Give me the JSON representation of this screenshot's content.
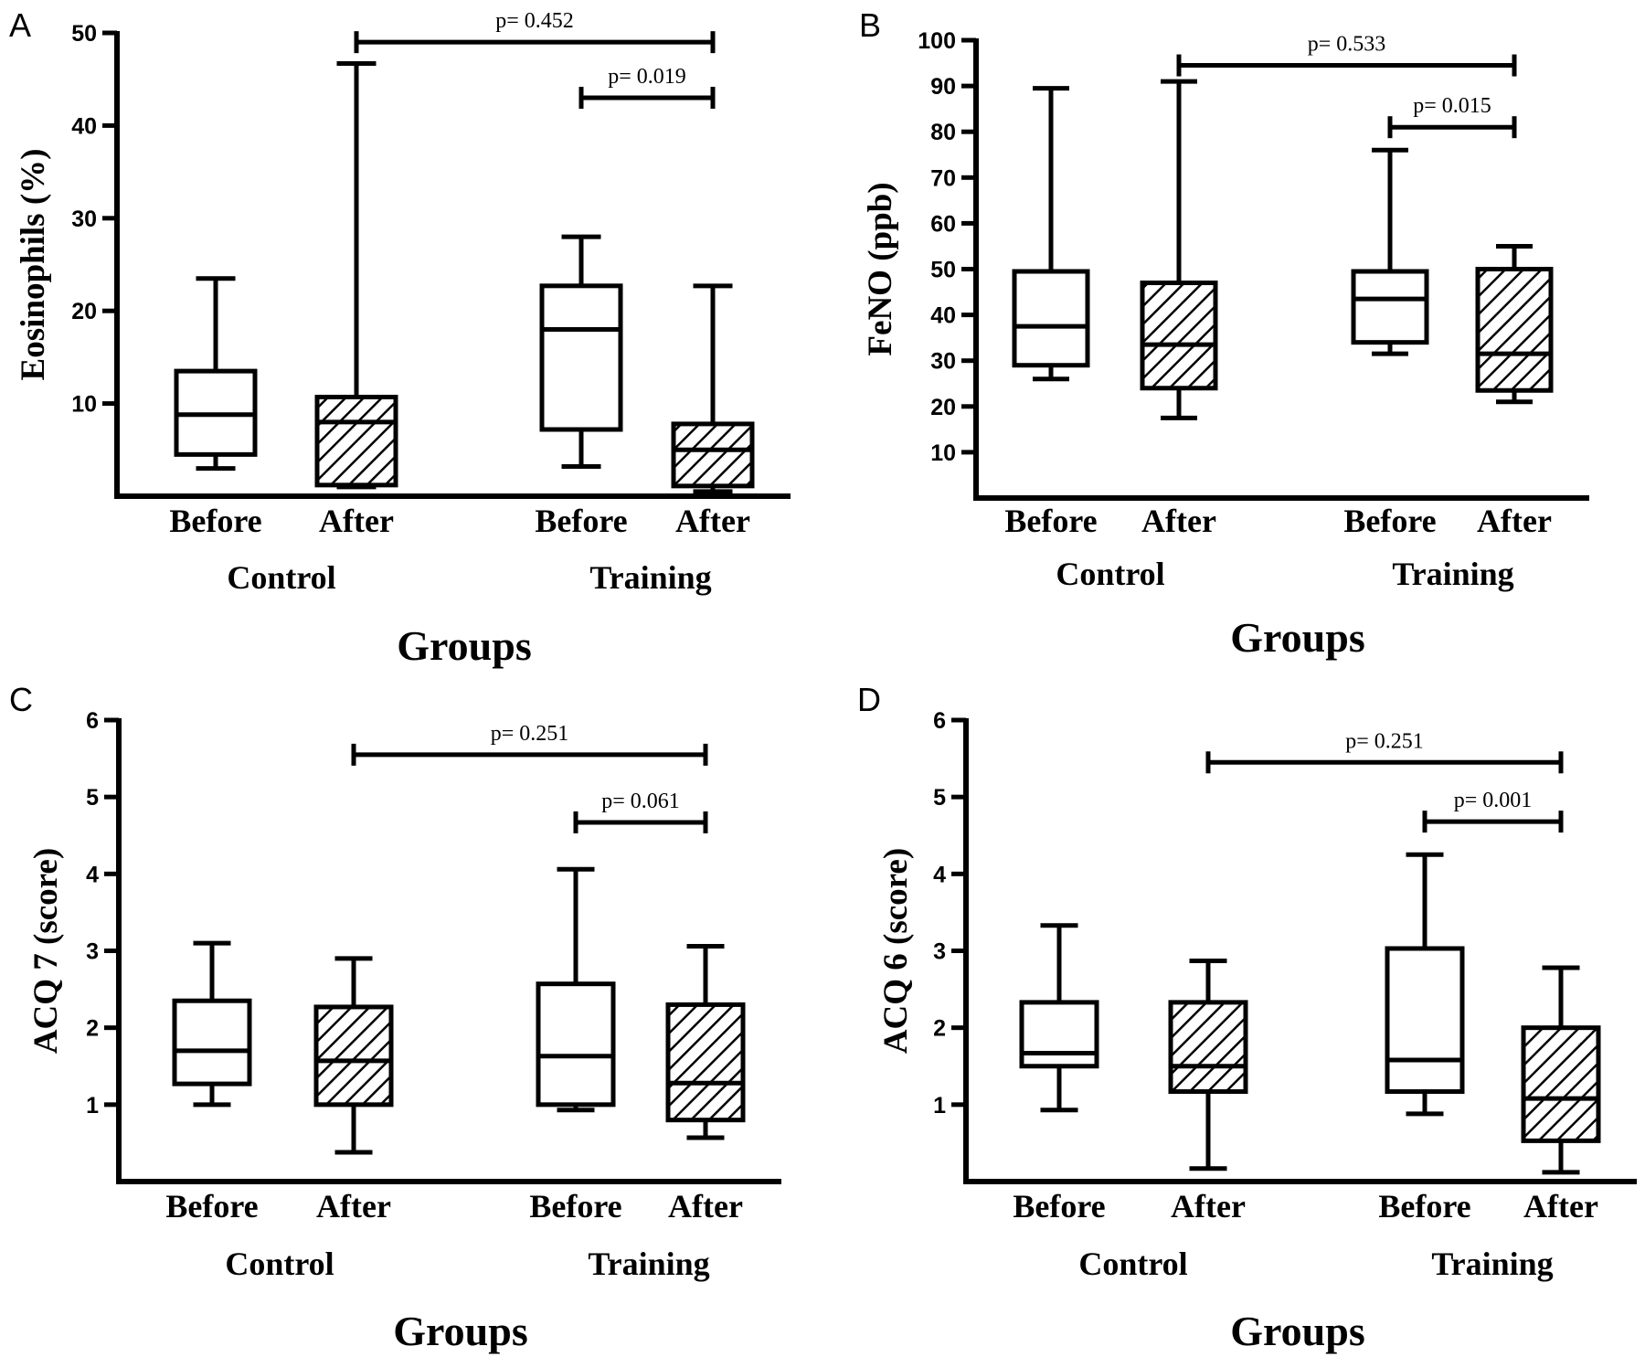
{
  "chart_data": [
    {
      "type": "box",
      "panel": "A",
      "ylabel": "Eosinophils (%)",
      "xlabel": "Groups",
      "ylim": [
        0,
        50
      ],
      "yticks": [
        10,
        20,
        30,
        40,
        50
      ],
      "groups": [
        "Control",
        "Training"
      ],
      "categories": [
        "Before",
        "After",
        "Before",
        "After"
      ],
      "boxes": [
        {
          "group": "Control",
          "label": "Before",
          "hatched": false,
          "min": 3,
          "q1": 4.5,
          "median": 8.8,
          "q3": 13.5,
          "max": 23.5
        },
        {
          "group": "Control",
          "label": "After",
          "hatched": true,
          "min": 1,
          "q1": 1.2,
          "median": 8,
          "q3": 10.7,
          "max": 46.7
        },
        {
          "group": "Training",
          "label": "Before",
          "hatched": false,
          "min": 3.2,
          "q1": 7.2,
          "median": 18,
          "q3": 22.7,
          "max": 28
        },
        {
          "group": "Training",
          "label": "After",
          "hatched": true,
          "min": 0.5,
          "q1": 1.1,
          "median": 5,
          "q3": 7.8,
          "max": 22.7
        }
      ],
      "comparisons": [
        {
          "text": "p= 0.452",
          "from": 1,
          "to": 3,
          "y": 49
        },
        {
          "text": "p= 0.019",
          "from": 2,
          "to": 3,
          "y": 43
        }
      ]
    },
    {
      "type": "box",
      "panel": "B",
      "ylabel": "FeNO (ppb)",
      "xlabel": "Groups",
      "ylim": [
        0,
        100
      ],
      "yticks": [
        10,
        20,
        30,
        40,
        50,
        60,
        70,
        80,
        90,
        100
      ],
      "groups": [
        "Control",
        "Training"
      ],
      "categories": [
        "Before",
        "After",
        "Before",
        "After"
      ],
      "boxes": [
        {
          "group": "Control",
          "label": "Before",
          "hatched": false,
          "min": 26,
          "q1": 29,
          "median": 37.5,
          "q3": 49.5,
          "max": 89.5
        },
        {
          "group": "Control",
          "label": "After",
          "hatched": true,
          "min": 17.5,
          "q1": 24,
          "median": 33.5,
          "q3": 47,
          "max": 91
        },
        {
          "group": "Training",
          "label": "Before",
          "hatched": false,
          "min": 31.5,
          "q1": 34,
          "median": 43.5,
          "q3": 49.5,
          "max": 76
        },
        {
          "group": "Training",
          "label": "After",
          "hatched": true,
          "min": 21,
          "q1": 23.5,
          "median": 31.5,
          "q3": 50,
          "max": 55
        }
      ],
      "comparisons": [
        {
          "text": "p= 0.533",
          "from": 1,
          "to": 3,
          "y": 94.5
        },
        {
          "text": "p= 0.015",
          "from": 2,
          "to": 3,
          "y": 81
        }
      ]
    },
    {
      "type": "box",
      "panel": "C",
      "ylabel": "ACQ 7 (score)",
      "xlabel": "Groups",
      "ylim": [
        0,
        6
      ],
      "yticks": [
        1,
        2,
        3,
        4,
        5,
        6
      ],
      "groups": [
        "Control",
        "Training"
      ],
      "categories": [
        "Before",
        "After",
        "Before",
        "After"
      ],
      "boxes": [
        {
          "group": "Control",
          "label": "Before",
          "hatched": false,
          "min": 1,
          "q1": 1.27,
          "median": 1.7,
          "q3": 2.35,
          "max": 3.1
        },
        {
          "group": "Control",
          "label": "After",
          "hatched": true,
          "min": 0.38,
          "q1": 1,
          "median": 1.57,
          "q3": 2.27,
          "max": 2.9
        },
        {
          "group": "Training",
          "label": "Before",
          "hatched": false,
          "min": 0.93,
          "q1": 1,
          "median": 1.63,
          "q3": 2.57,
          "max": 4.06
        },
        {
          "group": "Training",
          "label": "After",
          "hatched": true,
          "min": 0.57,
          "q1": 0.8,
          "median": 1.28,
          "q3": 2.3,
          "max": 3.06
        }
      ],
      "comparisons": [
        {
          "text": "p= 0.251",
          "from": 1,
          "to": 3,
          "y": 5.55
        },
        {
          "text": "p= 0.061",
          "from": 2,
          "to": 3,
          "y": 4.67
        }
      ]
    },
    {
      "type": "box",
      "panel": "D",
      "ylabel": "ACQ 6 (score)",
      "xlabel": "Groups",
      "ylim": [
        0,
        6
      ],
      "yticks": [
        1,
        2,
        3,
        4,
        5,
        6
      ],
      "groups": [
        "Control",
        "Training"
      ],
      "categories": [
        "Before",
        "After",
        "Before",
        "After"
      ],
      "boxes": [
        {
          "group": "Control",
          "label": "Before",
          "hatched": false,
          "min": 0.93,
          "q1": 1.5,
          "median": 1.67,
          "q3": 2.33,
          "max": 3.33
        },
        {
          "group": "Control",
          "label": "After",
          "hatched": true,
          "min": 0.17,
          "q1": 1.17,
          "median": 1.5,
          "q3": 2.33,
          "max": 2.87
        },
        {
          "group": "Training",
          "label": "Before",
          "hatched": false,
          "min": 0.88,
          "q1": 1.17,
          "median": 1.58,
          "q3": 3.03,
          "max": 4.25
        },
        {
          "group": "Training",
          "label": "After",
          "hatched": true,
          "min": 0.12,
          "q1": 0.53,
          "median": 1.08,
          "q3": 2,
          "max": 2.78
        }
      ],
      "comparisons": [
        {
          "text": "p= 0.251",
          "from": 1,
          "to": 3,
          "y": 5.45
        },
        {
          "text": "p= 0.001",
          "from": 2,
          "to": 3,
          "y": 4.68
        }
      ]
    }
  ]
}
